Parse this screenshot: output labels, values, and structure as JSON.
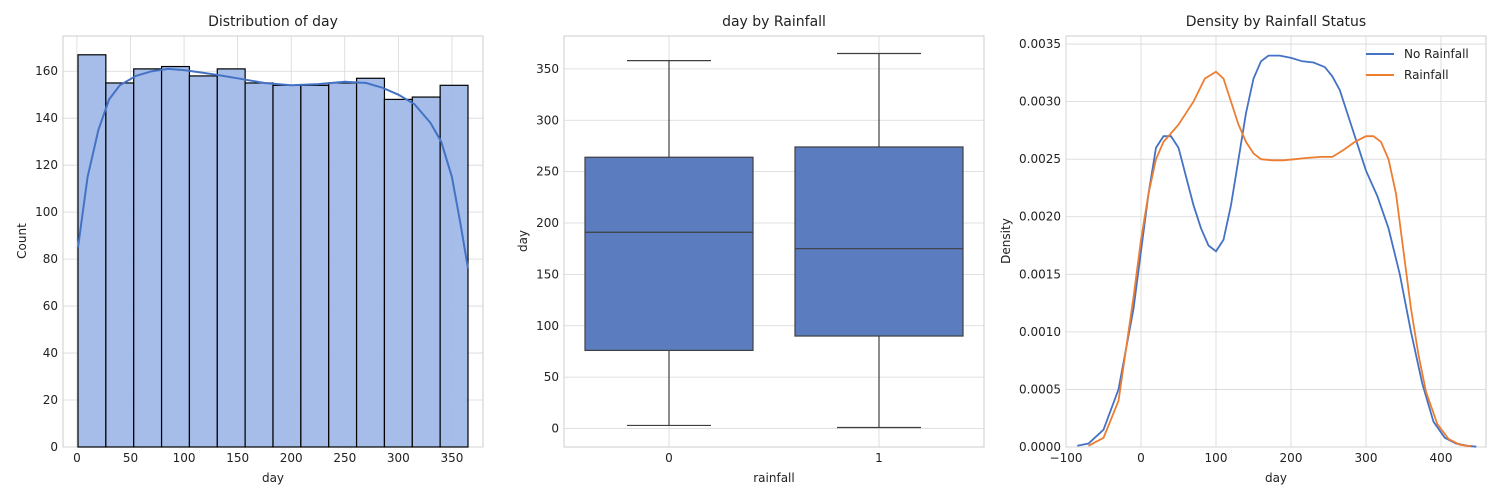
{
  "chart_data": [
    {
      "type": "bar",
      "title": "Distribution of day",
      "xlabel": "day",
      "ylabel": "Count",
      "xlim": [
        -13,
        379
      ],
      "ylim": [
        0,
        175
      ],
      "xticks": [
        0,
        50,
        100,
        150,
        200,
        250,
        300,
        350
      ],
      "yticks": [
        0,
        20,
        40,
        60,
        80,
        100,
        120,
        140,
        160
      ],
      "bin_edges": [
        1,
        27,
        53,
        79,
        105,
        131,
        157,
        183,
        209,
        235,
        261,
        287,
        313,
        339,
        365
      ],
      "values": [
        167,
        155,
        161,
        162,
        158,
        161,
        155,
        154,
        154,
        155,
        157,
        148,
        149,
        154
      ],
      "bar_color": "#a0b9e7",
      "kde": {
        "color": "#4472c4",
        "x": [
          1,
          10,
          20,
          30,
          40,
          55,
          70,
          85,
          100,
          115,
          130,
          150,
          175,
          200,
          225,
          250,
          270,
          285,
          300,
          315,
          330,
          340,
          350,
          358,
          365
        ],
        "y": [
          85,
          115,
          135,
          148,
          154,
          158,
          160,
          161,
          160.5,
          159.5,
          158.5,
          157,
          155,
          154,
          154.5,
          155.5,
          155,
          153,
          150,
          146,
          138,
          130,
          115,
          95,
          76
        ]
      }
    },
    {
      "type": "box",
      "title": "day by Rainfall",
      "xlabel": "rainfall",
      "ylabel": "day",
      "categories": [
        "0",
        "1"
      ],
      "ylim": [
        -18,
        382
      ],
      "yticks": [
        0,
        50,
        100,
        150,
        200,
        250,
        300,
        350
      ],
      "box_color": "#5b7dc0",
      "boxes": [
        {
          "whisker_low": 3,
          "q1": 76,
          "median": 191,
          "q3": 264,
          "whisker_high": 358
        },
        {
          "whisker_low": 1,
          "q1": 90,
          "median": 175,
          "q3": 274,
          "whisker_high": 365
        }
      ]
    },
    {
      "type": "line",
      "title": "Density by Rainfall Status",
      "xlabel": "day",
      "ylabel": "Density",
      "xlim": [
        -100,
        460
      ],
      "ylim": [
        0,
        0.00357
      ],
      "xticks": [
        -100,
        0,
        100,
        200,
        300,
        400
      ],
      "xtick_labels": [
        "−100",
        "0",
        "100",
        "200",
        "300",
        "400"
      ],
      "yticks": [
        0,
        0.0005,
        0.001,
        0.0015,
        0.002,
        0.0025,
        0.003,
        0.0035
      ],
      "ytick_labels": [
        "0.0000",
        "0.0005",
        "0.0010",
        "0.0015",
        "0.0020",
        "0.0025",
        "0.0030",
        "0.0035"
      ],
      "legend_position": "top-right",
      "series": [
        {
          "name": "No Rainfall",
          "color": "#4472c4",
          "x": [
            -85,
            -70,
            -50,
            -30,
            -10,
            0,
            10,
            20,
            30,
            40,
            50,
            60,
            70,
            80,
            90,
            100,
            110,
            120,
            130,
            140,
            150,
            160,
            170,
            185,
            200,
            215,
            230,
            245,
            255,
            265,
            275,
            285,
            300,
            315,
            330,
            345,
            360,
            375,
            390,
            405,
            420,
            435,
            447
          ],
          "y": [
            1e-05,
            3e-05,
            0.00015,
            0.0005,
            0.0012,
            0.0017,
            0.0022,
            0.0026,
            0.0027,
            0.0027,
            0.0026,
            0.00235,
            0.0021,
            0.0019,
            0.00175,
            0.0017,
            0.0018,
            0.0021,
            0.0025,
            0.0029,
            0.0032,
            0.00335,
            0.0034,
            0.0034,
            0.00338,
            0.00335,
            0.00334,
            0.0033,
            0.00322,
            0.0031,
            0.0029,
            0.0027,
            0.0024,
            0.00218,
            0.0019,
            0.0015,
            0.001,
            0.00055,
            0.00022,
            8e-05,
            3e-05,
            1e-05,
            3e-06
          ]
        },
        {
          "name": "Rainfall",
          "color": "#ed7d31",
          "x": [
            -70,
            -50,
            -30,
            -10,
            0,
            10,
            20,
            30,
            50,
            70,
            85,
            100,
            110,
            120,
            130,
            140,
            150,
            160,
            175,
            190,
            205,
            220,
            240,
            255,
            270,
            285,
            300,
            310,
            320,
            330,
            340,
            350,
            360,
            370,
            380,
            395,
            410,
            425,
            440
          ],
          "y": [
            1e-05,
            8e-05,
            0.0004,
            0.0013,
            0.0018,
            0.0022,
            0.0025,
            0.00265,
            0.0028,
            0.003,
            0.0032,
            0.00326,
            0.0032,
            0.003,
            0.0028,
            0.00265,
            0.00255,
            0.0025,
            0.00249,
            0.00249,
            0.0025,
            0.00251,
            0.00252,
            0.00252,
            0.00258,
            0.00265,
            0.0027,
            0.0027,
            0.00265,
            0.0025,
            0.0022,
            0.0017,
            0.0012,
            0.0008,
            0.00048,
            0.0002,
            7e-05,
            2e-05,
            5e-06
          ]
        }
      ]
    }
  ]
}
